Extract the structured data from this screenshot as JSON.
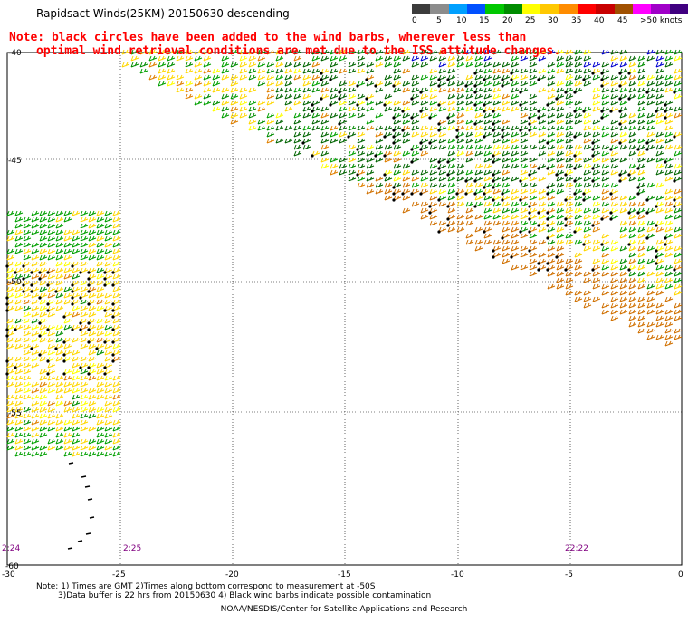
{
  "title": "Rapidsact Winds(25KM) 20150630 descending",
  "note": {
    "line1": "Note: black circles have been added to the wind barbs, wherever less than",
    "line2": "optimal wind retrieval conditions are met due to the ISS attitude changes."
  },
  "colorbar": {
    "colors": [
      "#3c3c3c",
      "#8c8c8c",
      "#00a0ff",
      "#0050ff",
      "#00c800",
      "#008c00",
      "#ffff00",
      "#ffc800",
      "#ff8c00",
      "#ff0000",
      "#c80000",
      "#a05000",
      "#ff00ff",
      "#a000c8",
      "#400080"
    ],
    "labels": [
      "0",
      "5",
      "10",
      "15",
      "20",
      "25",
      "30",
      "35",
      "40",
      "45",
      ">50 knots"
    ]
  },
  "axes": {
    "x_ticks": [
      "-30",
      "-25",
      "-20",
      "-15",
      "-10",
      "-5",
      "0"
    ],
    "y_ticks": [
      "-40",
      "-45",
      "-50",
      "-55",
      "-60"
    ]
  },
  "times": [
    "2:24",
    "2:25",
    "22:22"
  ],
  "footnotes": {
    "line1": "Note: 1) Times are GMT 2)Times along bottom correspond to measurement at -50S",
    "line2": "3)Data buffer is 22 hrs from 20150630 4) Black wind barbs indicate possible contamination",
    "credit": "NOAA/NESDIS/Center for Satellite Applications and Research"
  }
}
